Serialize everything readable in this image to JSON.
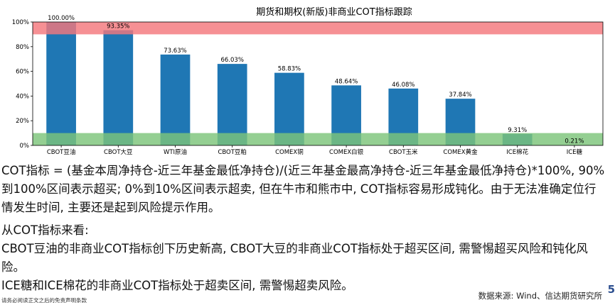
{
  "chart_data": {
    "type": "bar",
    "title": "期货和期权(新版)非商业COT指标跟踪",
    "categories": [
      "CBOT豆油",
      "CBOT大豆",
      "WTI原油",
      "CBOT豆粕",
      "COMEX铜",
      "COMEX白银",
      "CBOT玉米",
      "COMEX黄金",
      "ICE棉花",
      "ICE糖"
    ],
    "values": [
      100.0,
      93.35,
      73.63,
      66.03,
      58.83,
      48.64,
      46.08,
      37.84,
      9.31,
      0.21
    ],
    "value_labels": [
      "100.00%",
      "93.35%",
      "73.63%",
      "66.03%",
      "58.83%",
      "48.64%",
      "46.08%",
      "37.84%",
      "9.31%",
      "0.21%"
    ],
    "yticks": [
      "0%",
      "20%",
      "40%",
      "60%",
      "80%",
      "100%"
    ],
    "ylim": [
      0,
      100
    ],
    "xlabel": "",
    "ylabel": "",
    "bands": [
      {
        "from": 90,
        "to": 100,
        "color": "#f4777c"
      },
      {
        "from": 0,
        "to": 10,
        "color": "#7cc47a"
      }
    ],
    "bar_color": "#1f77b4",
    "grid": false
  },
  "text": {
    "p1": "COT指标 = (基金本周净持仓-近三年基金最低净持仓)/(近三年基金最高净持仓-近三年基金最低净持仓)*100%, 90%到100%区间表示超买; 0%到10%区间表示超卖, 但在牛市和熊市中, COT指标容易形成钝化。由于无法准确定位行情发生时间, 主要还是起到风险提示作用。",
    "p2": "从COT指标来看:",
    "p3": "CBOT豆油的非商业COT指标创下历史新高, CBOT大豆的非商业COT指标处于超买区间, 需警惕超买风险和钝化风险。",
    "p4": "ICE糖和ICE棉花的非商业COT指标处于超卖区间, 需警惕超卖风险。"
  },
  "footer": {
    "source": "数据来源: Wind、信达期货研究所",
    "disclaimer": "请务必阅读正文之后的免责声明条款",
    "page": "5"
  }
}
